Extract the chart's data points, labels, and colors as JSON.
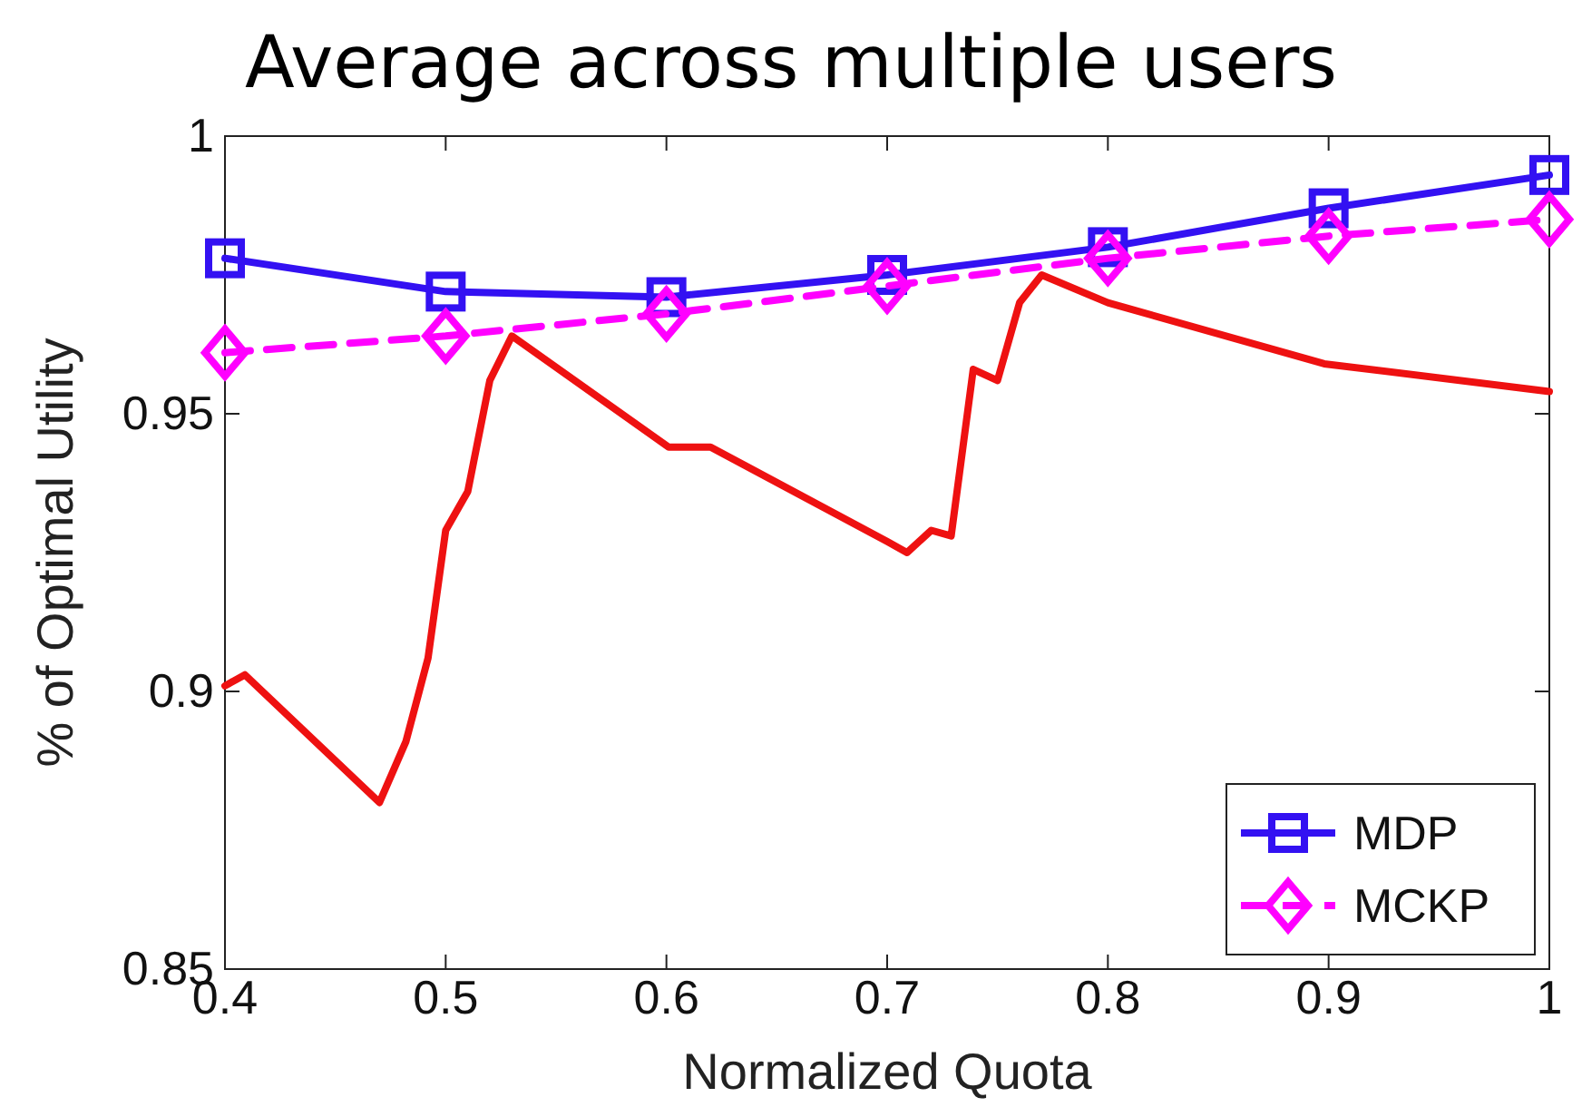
{
  "chart_data": {
    "type": "line",
    "title": "Average across multiple users",
    "xlabel": "Normalized Quota",
    "ylabel": "% of Optimal Utility",
    "xlim": [
      0.4,
      1
    ],
    "xticks": [
      0.4,
      0.5,
      0.6,
      0.7,
      0.8,
      0.9,
      1
    ],
    "ylim": [
      0.85,
      1
    ],
    "yticks": [
      0.85,
      0.9,
      0.95,
      1
    ],
    "grid": false,
    "legend": "bottom right",
    "series": [
      {
        "name": "MDP",
        "color": "#3311f2",
        "marker": "square",
        "line_style": "solid",
        "x": [
          0.4,
          0.5,
          0.6,
          0.7,
          0.8,
          0.9,
          1
        ],
        "values": [
          0.978,
          0.972,
          0.971,
          0.975,
          0.98,
          0.987,
          0.993
        ]
      },
      {
        "name": "MCKP",
        "color": "#ff00ff",
        "marker": "diamond",
        "line_style": "dashed",
        "x": [
          0.4,
          0.5,
          0.6,
          0.7,
          0.8,
          0.9,
          1
        ],
        "values": [
          0.961,
          0.964,
          0.968,
          0.973,
          0.978,
          0.982,
          0.985
        ]
      },
      {
        "color": "#ee1111",
        "marker": "none",
        "line_style": "solid",
        "x": [
          0.4,
          0.409,
          0.47,
          0.482,
          0.492,
          0.5,
          0.51,
          0.52,
          0.53,
          0.601,
          0.62,
          0.7,
          0.709,
          0.72,
          0.729,
          0.739,
          0.75,
          0.76,
          0.77,
          0.8,
          0.898,
          1
        ],
        "values": [
          0.901,
          0.903,
          0.88,
          0.891,
          0.906,
          0.929,
          0.936,
          0.956,
          0.964,
          0.944,
          0.944,
          0.927,
          0.925,
          0.929,
          0.928,
          0.958,
          0.956,
          0.97,
          0.975,
          0.97,
          0.959,
          0.954
        ]
      }
    ]
  }
}
